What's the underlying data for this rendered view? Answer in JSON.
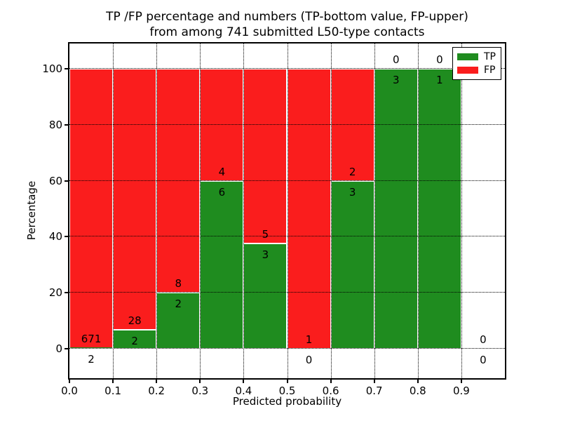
{
  "title": {
    "line1": "TP /FP percentage and numbers (TP-bottom value, FP-upper)",
    "line2": "from among 741 submitted L50-type contacts"
  },
  "axes": {
    "xlabel": "Predicted probability",
    "ylabel": "Percentage"
  },
  "legend": {
    "items": [
      {
        "label": "TP",
        "color": "#1f8c1f"
      },
      {
        "label": "FP",
        "color": "#fa1d1d"
      }
    ]
  },
  "chart_data": {
    "type": "bar",
    "stacked": true,
    "title": "TP /FP percentage and numbers (TP-bottom value, FP-upper) from among 741 submitted L50-type contacts",
    "xlabel": "Predicted probability",
    "ylabel": "Percentage",
    "total_submitted": 741,
    "xlim": [
      0.0,
      1.0
    ],
    "ylim": [
      -10,
      109
    ],
    "grid": "dotted",
    "legend_position": "upper-right",
    "x_tick_labels": [
      "0.0",
      "0.1",
      "0.2",
      "0.3",
      "0.4",
      "0.5",
      "0.6",
      "0.7",
      "0.8",
      "0.9"
    ],
    "y_tick_values": [
      0,
      20,
      40,
      60,
      80,
      100
    ],
    "categories": [
      "0.0-0.1",
      "0.1-0.2",
      "0.2-0.3",
      "0.3-0.4",
      "0.4-0.5",
      "0.5-0.6",
      "0.6-0.7",
      "0.7-0.8",
      "0.8-0.9",
      "0.9-1.0"
    ],
    "series": [
      {
        "name": "TP",
        "color": "#1f8c1f",
        "values": [
          2,
          2,
          2,
          6,
          3,
          0,
          3,
          3,
          1,
          0
        ]
      },
      {
        "name": "FP",
        "color": "#fa1d1d",
        "values": [
          671,
          28,
          8,
          4,
          5,
          1,
          2,
          0,
          0,
          0
        ]
      }
    ],
    "tp_percent": [
      0.3,
      6.7,
      20.0,
      60.0,
      37.5,
      0.0,
      60.0,
      100.0,
      100.0,
      null
    ]
  }
}
